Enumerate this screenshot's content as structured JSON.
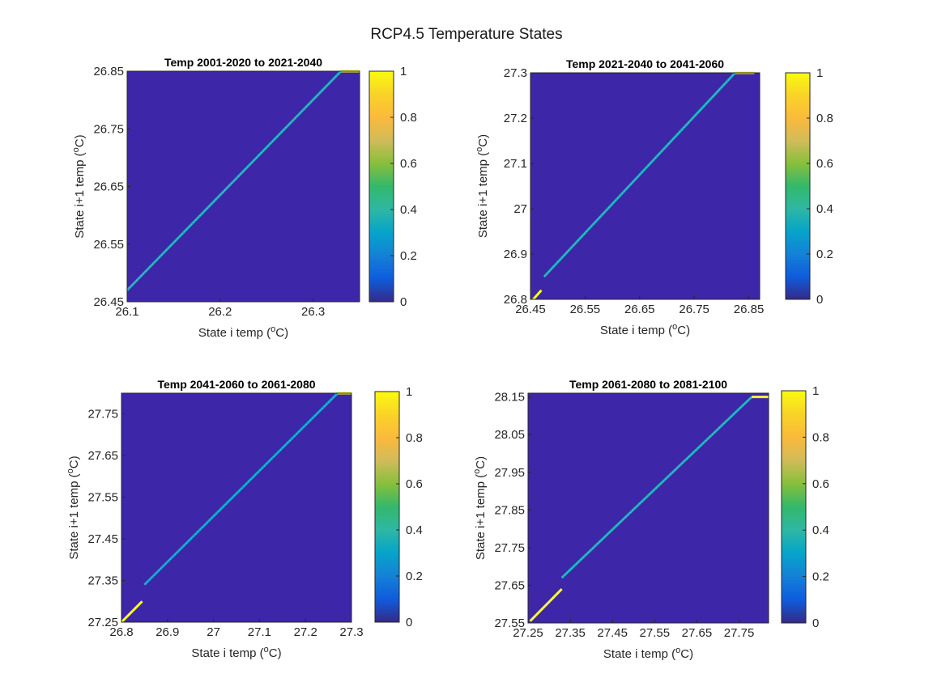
{
  "figure": {
    "title": "RCP4.5 Temperature States"
  },
  "colorbar": {
    "min": 0,
    "max": 1,
    "ticks": [
      "0",
      "0.2",
      "0.4",
      "0.6",
      "0.8",
      "1"
    ]
  },
  "colors": {
    "background": "#3d26a8",
    "diagonal": "#27a9e1",
    "high": "#f9fb0e",
    "edge": "#ffffff"
  },
  "chart_data": [
    {
      "type": "heatmap",
      "title": "Temp 2001-2020 to 2021-2040",
      "xlabel": "State i temp (",
      "ylabel": "State i+1 temp (",
      "unit_sup": "o",
      "unit_suffix": "C)",
      "xlim": [
        26.1,
        26.35
      ],
      "ylim": [
        26.45,
        26.85
      ],
      "xticks": [
        "26.1",
        "26.2",
        "26.3"
      ],
      "yticks": [
        "26.45",
        "26.55",
        "26.65",
        "26.75",
        "26.85"
      ],
      "diagonal_value": 0.35,
      "diagonal": [
        [
          26.1,
          26.47
        ],
        [
          26.33,
          26.85
        ]
      ],
      "high_segments": [
        [
          [
            26.33,
            26.85
          ],
          [
            26.35,
            26.85
          ]
        ]
      ]
    },
    {
      "type": "heatmap",
      "title": "Temp 2021-2040 to 2041-2060",
      "xlabel": "State i temp (",
      "ylabel": "State i+1 temp (",
      "unit_sup": "o",
      "unit_suffix": "C)",
      "xlim": [
        26.45,
        26.87
      ],
      "ylim": [
        26.8,
        27.3
      ],
      "xticks": [
        "26.45",
        "26.55",
        "26.65",
        "26.75",
        "26.85"
      ],
      "yticks": [
        "26.8",
        "26.9",
        "27",
        "27.1",
        "27.2",
        "27.3"
      ],
      "diagonal_value": 0.35,
      "diagonal": [
        [
          26.475,
          26.85
        ],
        [
          26.825,
          27.3
        ]
      ],
      "high_segments": [
        [
          [
            26.455,
            26.8
          ],
          [
            26.47,
            26.82
          ]
        ],
        [
          [
            26.825,
            27.3
          ],
          [
            26.86,
            27.3
          ]
        ]
      ]
    },
    {
      "type": "heatmap",
      "title": "Temp 2041-2060 to 2061-2080",
      "xlabel": "State i temp (",
      "ylabel": "State i+1 temp (",
      "unit_sup": "o",
      "unit_suffix": "C)",
      "xlim": [
        26.8,
        27.3
      ],
      "ylim": [
        27.25,
        27.8
      ],
      "xticks": [
        "26.8",
        "26.9",
        "27",
        "27.1",
        "27.2",
        "27.3"
      ],
      "yticks": [
        "27.25",
        "27.35",
        "27.45",
        "27.55",
        "27.65",
        "27.75"
      ],
      "diagonal_value": 0.3,
      "diagonal": [
        [
          26.85,
          27.34
        ],
        [
          27.27,
          27.8
        ]
      ],
      "high_segments": [
        [
          [
            26.8,
            27.25
          ],
          [
            26.845,
            27.3
          ]
        ],
        [
          [
            27.27,
            27.8
          ],
          [
            27.3,
            27.8
          ]
        ]
      ]
    },
    {
      "type": "heatmap",
      "title": "Temp 2061-2080 to 2081-2100",
      "xlabel": "State i temp (",
      "ylabel": "State i+1 temp (",
      "unit_sup": "o",
      "unit_suffix": "C)",
      "xlim": [
        27.25,
        27.82
      ],
      "ylim": [
        27.55,
        28.16
      ],
      "xticks": [
        "27.25",
        "27.35",
        "27.45",
        "27.55",
        "27.65",
        "27.75"
      ],
      "yticks": [
        "27.55",
        "27.65",
        "27.75",
        "27.85",
        "27.95",
        "28.05",
        "28.15"
      ],
      "diagonal_value": 0.35,
      "diagonal": [
        [
          27.33,
          27.67
        ],
        [
          27.78,
          28.15
        ]
      ],
      "high_segments": [
        [
          [
            27.255,
            27.555
          ],
          [
            27.33,
            27.64
          ]
        ],
        [
          [
            27.78,
            28.15
          ],
          [
            27.82,
            28.15
          ]
        ]
      ]
    }
  ]
}
